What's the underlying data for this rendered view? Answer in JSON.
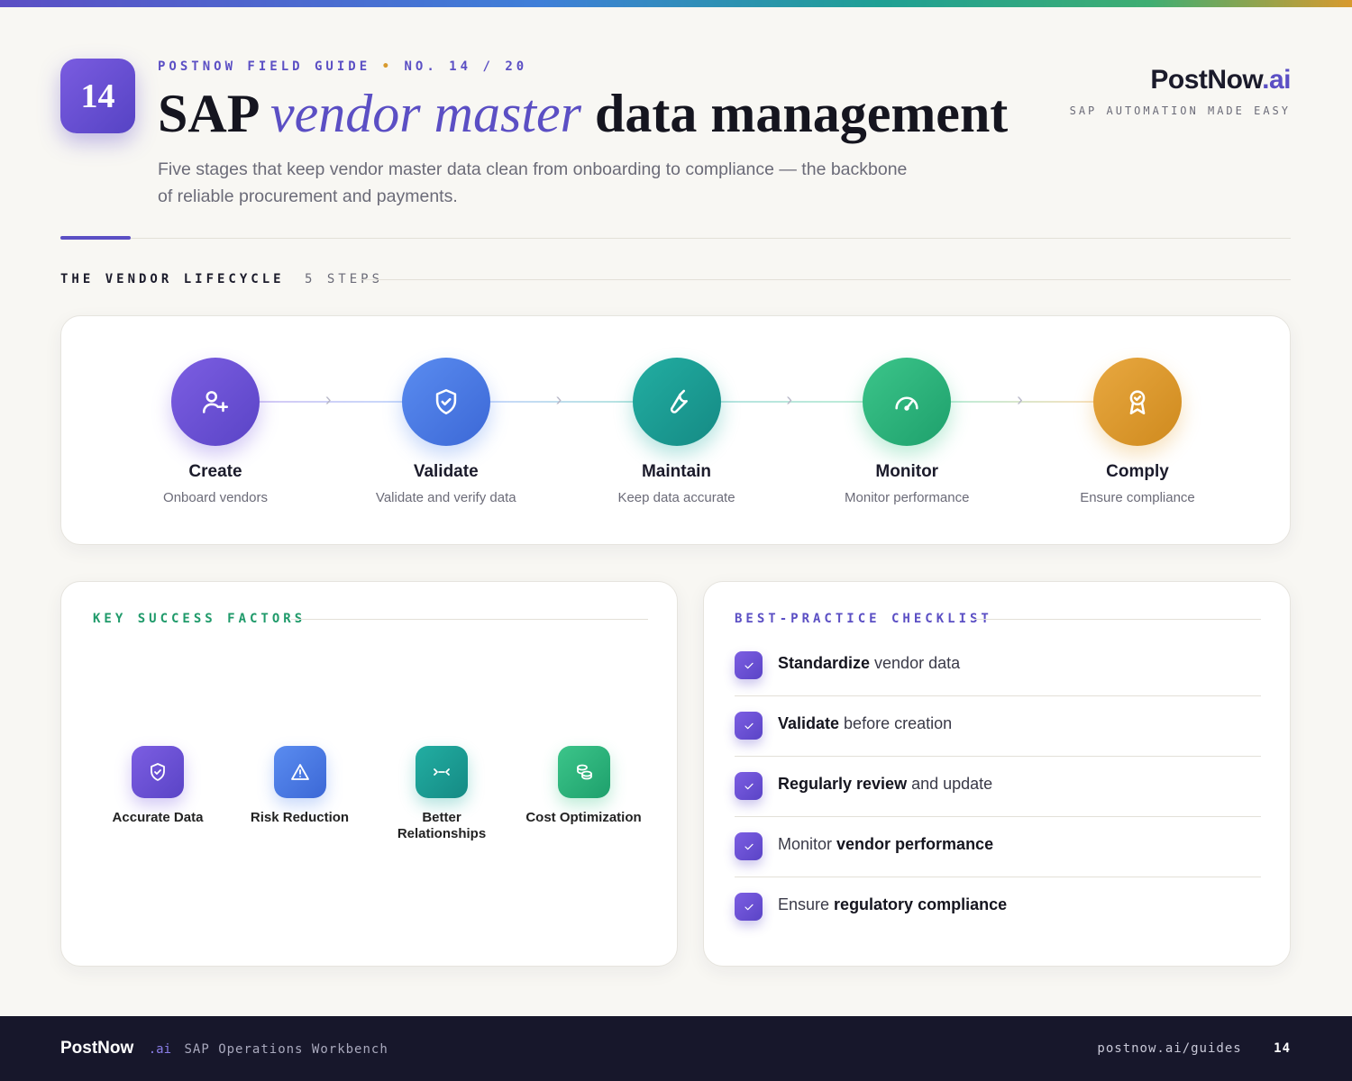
{
  "badge": "14",
  "header": {
    "eyebrow": "POSTNOW FIELD GUIDE",
    "issue": "NO. 14 / 20",
    "title_start": "SAP",
    "title_em": "vendor master",
    "title_end": "data management",
    "subtitle": "Five stages that keep vendor master data clean from onboarding to compliance — the backbone of reliable procurement and payments."
  },
  "brand": {
    "name": "PostNow",
    "suffix": ".ai",
    "tagline": "SAP AUTOMATION MADE EASY"
  },
  "lifecycle": {
    "label": "THE VENDOR LIFECYCLE",
    "count": "5 STEPS",
    "steps": [
      {
        "title": "Create",
        "desc": "Onboard vendors"
      },
      {
        "title": "Validate",
        "desc": "Validate and verify data"
      },
      {
        "title": "Maintain",
        "desc": "Keep data accurate"
      },
      {
        "title": "Monitor",
        "desc": "Monitor performance"
      },
      {
        "title": "Comply",
        "desc": "Ensure compliance"
      }
    ]
  },
  "factors": {
    "label": "KEY SUCCESS FACTORS",
    "items": [
      "Accurate Data",
      "Risk Reduction",
      "Better Relationships",
      "Cost Optimization"
    ]
  },
  "checklist": {
    "label": "BEST-PRACTICE CHECKLIST",
    "items": [
      [
        {
          "text": "Standardize",
          "strong": true
        },
        {
          "text": " vendor data"
        }
      ],
      [
        {
          "text": "Validate",
          "strong": true
        },
        {
          "text": " before creation"
        }
      ],
      [
        {
          "text": "Regularly review",
          "strong": true
        },
        {
          "text": " and update"
        }
      ],
      [
        {
          "text": "Monitor "
        },
        {
          "text": "vendor performance",
          "strong": true
        }
      ],
      [
        {
          "text": "Ensure "
        },
        {
          "text": "regulatory compliance",
          "strong": true
        }
      ]
    ]
  },
  "footer": {
    "brand": "PostNow",
    "suffix": ".ai",
    "product": "SAP Operations Workbench",
    "url": "postnow.ai/guides",
    "page": "14"
  }
}
